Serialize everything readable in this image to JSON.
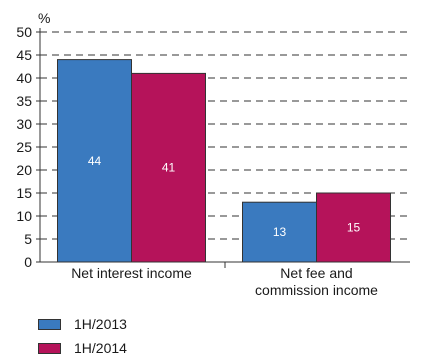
{
  "chart_data": {
    "type": "bar",
    "ylabel": "%",
    "ylim": [
      0,
      50
    ],
    "yticks": [
      0,
      5,
      10,
      15,
      20,
      25,
      30,
      35,
      40,
      45,
      50
    ],
    "grid": "dashed horizontal",
    "categories": [
      [
        "Net interest income"
      ],
      [
        "Net fee and",
        "commission income"
      ]
    ],
    "series": [
      {
        "name": "1H/2013",
        "color": "#3a7abf",
        "values": [
          44,
          13
        ]
      },
      {
        "name": "1H/2014",
        "color": "#b5135a",
        "values": [
          41,
          15
        ]
      }
    ],
    "legend_position": "bottom-left"
  }
}
